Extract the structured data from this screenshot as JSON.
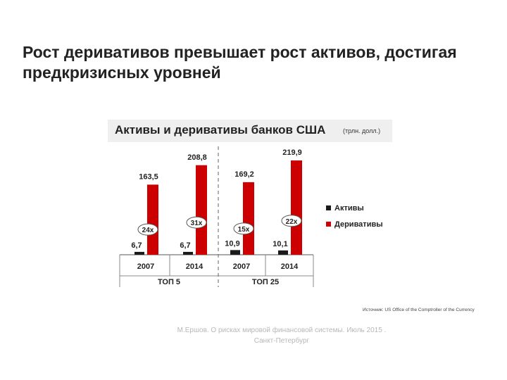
{
  "slide": {
    "title": "Рост деривативов превышает рост активов, достигая предкризисных уровней"
  },
  "chart_header": {
    "title": "Активы и деривативы банков США",
    "unit": "(трлн. долл.)"
  },
  "source": "Источник: US Office of the Comptroller of the Currency",
  "footer": "М.Ершов. О рисках мировой финансовой системы. Июль 2015 . Санкт-Петербург",
  "chart_data": {
    "type": "bar",
    "title": "Активы и деривативы банков США",
    "unit": "(трлн. долл.)",
    "groups": [
      {
        "label": "ТОП 5",
        "categories": [
          "2007",
          "2014"
        ]
      },
      {
        "label": "ТОП 25",
        "categories": [
          "2007",
          "2014"
        ]
      }
    ],
    "categories": [
      "2007",
      "2014",
      "2007",
      "2014"
    ],
    "series": [
      {
        "name": "Активы",
        "color": "#1a1a1a",
        "values": [
          6.7,
          6.7,
          10.9,
          10.1
        ],
        "labels": [
          "6,7",
          "6,7",
          "10,9",
          "10,1"
        ]
      },
      {
        "name": "Деривативы",
        "color": "#cc0000",
        "values": [
          163.5,
          208.8,
          169.2,
          219.9
        ],
        "labels": [
          "163,5",
          "208,8",
          "169,2",
          "219,9"
        ]
      }
    ],
    "ratios": [
      "24x",
      "31x",
      "15x",
      "22x"
    ],
    "ylim": [
      0,
      230
    ],
    "legend_position": "right",
    "grid": false
  }
}
